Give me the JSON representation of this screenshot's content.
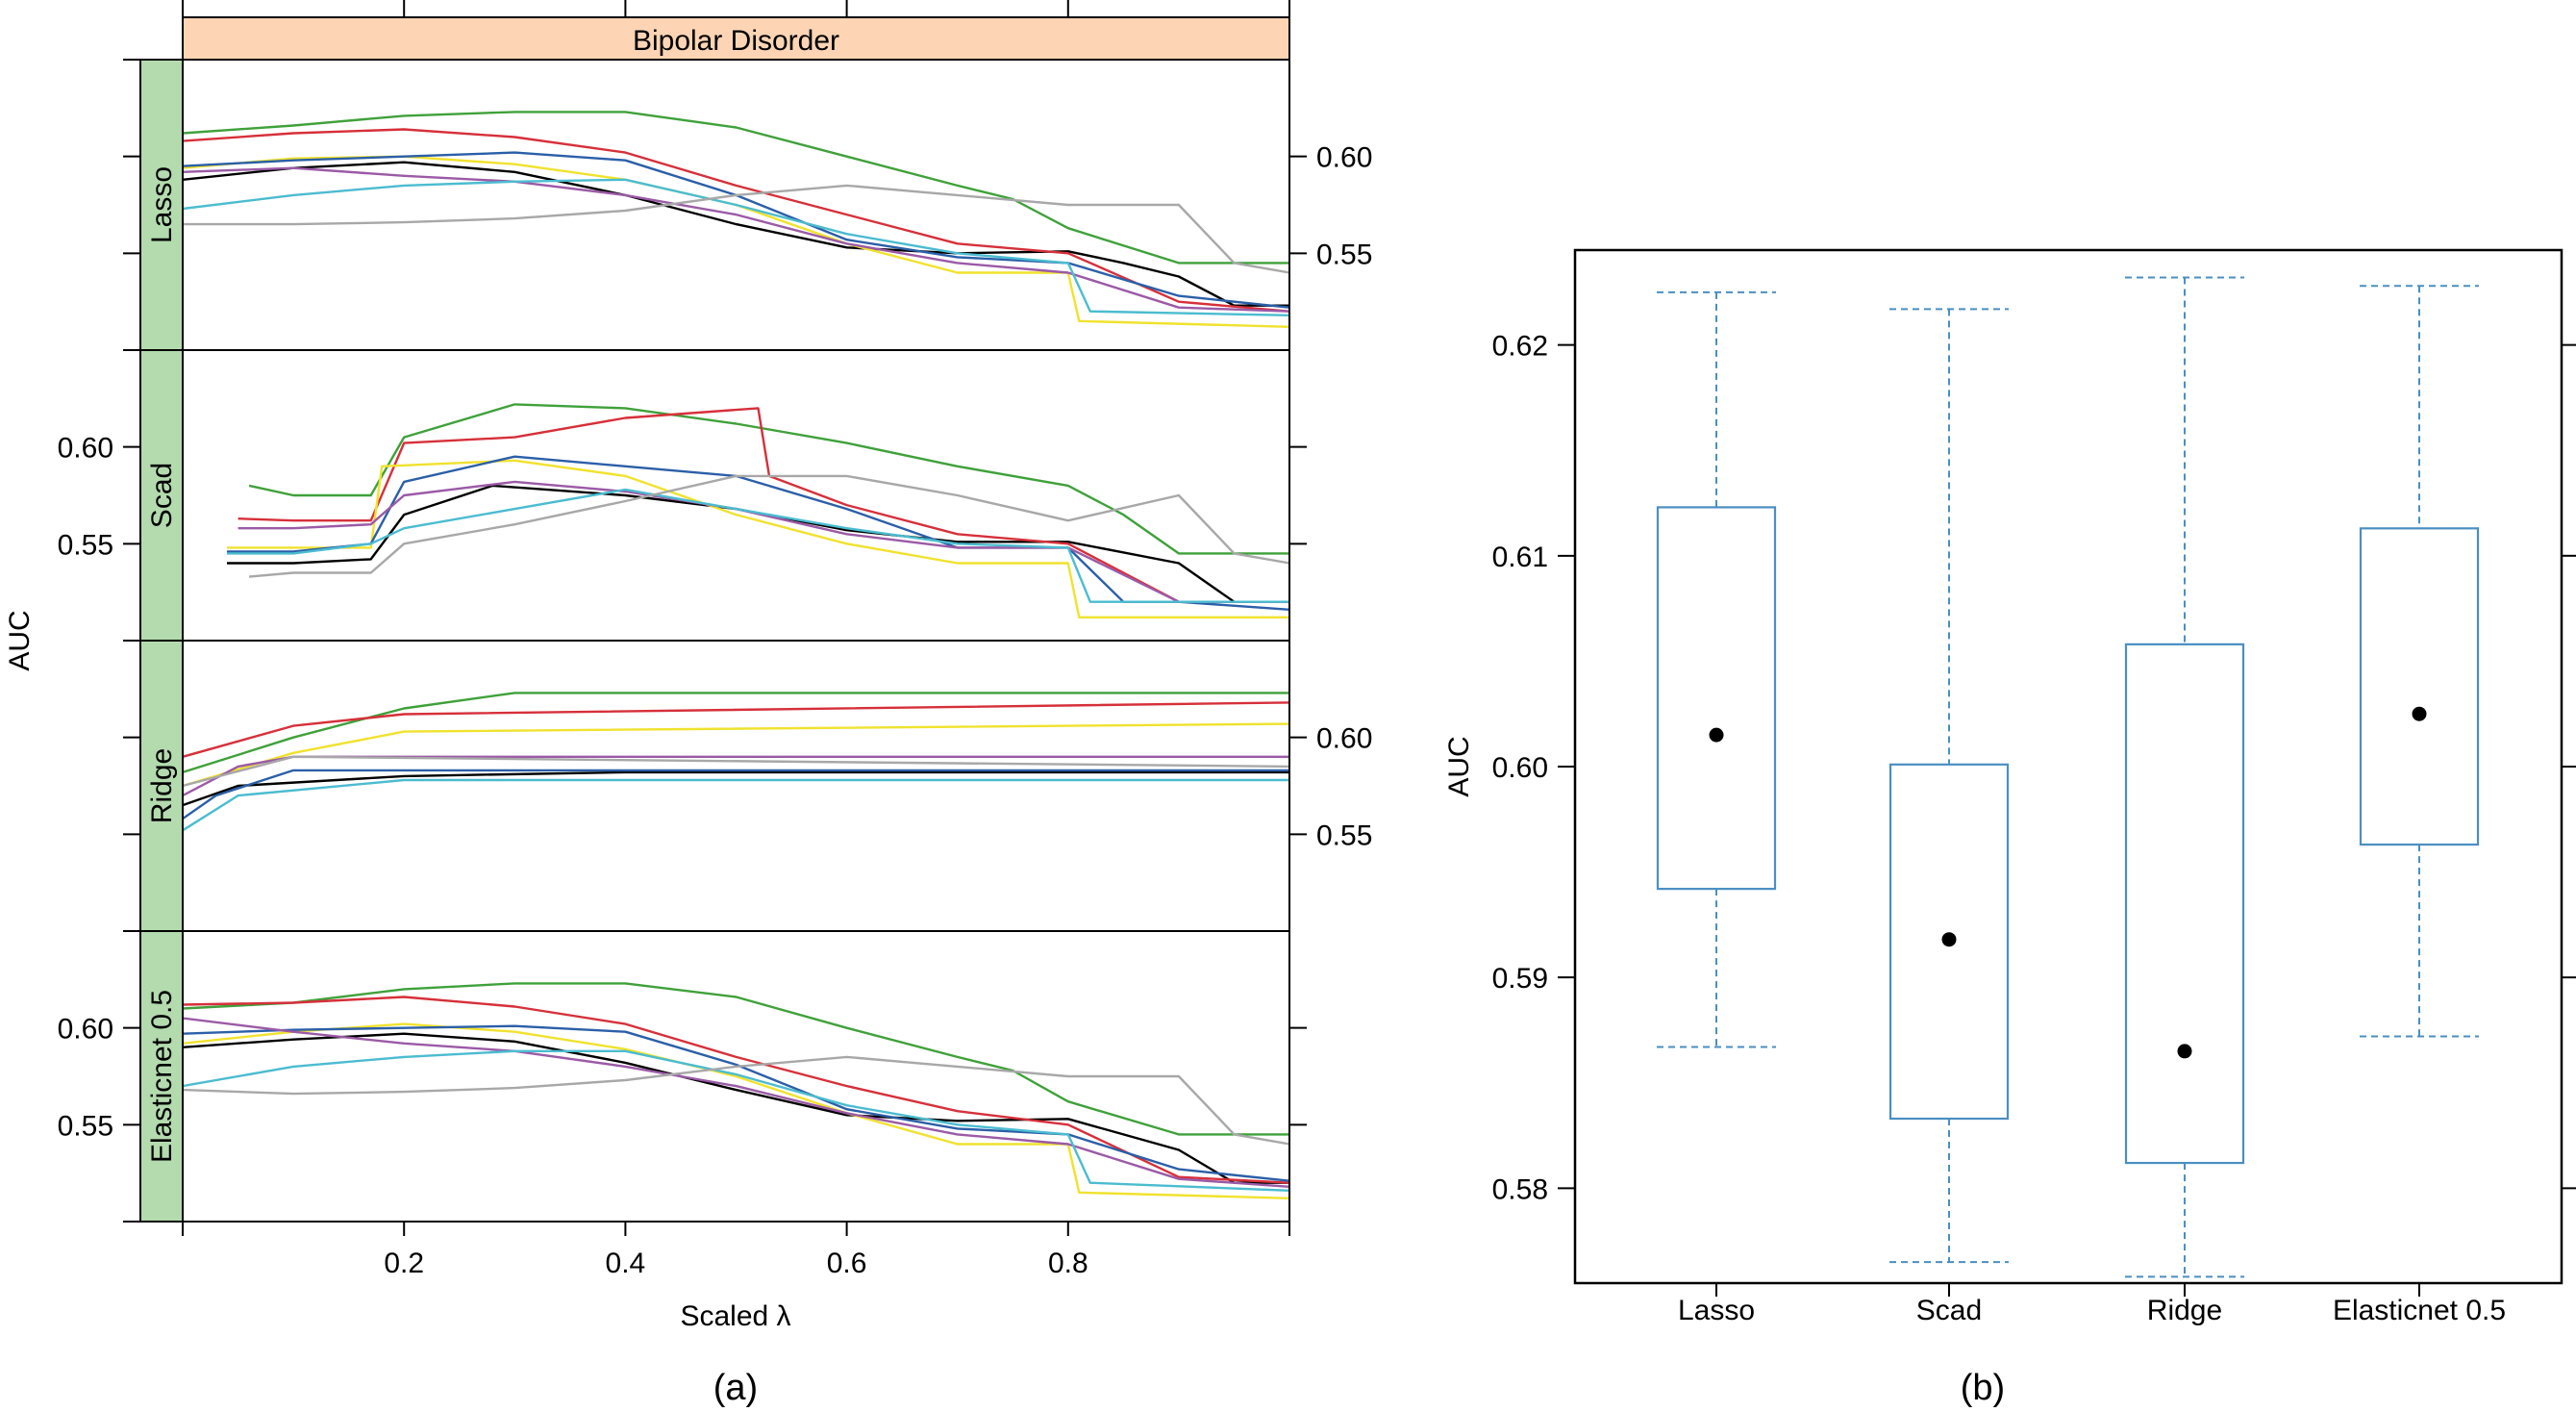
{
  "colors": {
    "strip_top": "#fdd5b4",
    "strip_side": "#b3dbae",
    "box": "#4a8fc2",
    "series": [
      "#000000",
      "#3fa13a",
      "#d6303a",
      "#f0e22e",
      "#2b5fa8",
      "#9b5aa6",
      "#4bbcd0",
      "#a8a8a8"
    ]
  },
  "panel_a": {
    "caption": "(a)",
    "strip_title": "Bipolar Disorder",
    "ylabel": "AUC",
    "xlabel": "Scaled λ",
    "x_ticks": [
      "0.2",
      "0.4",
      "0.6",
      "0.8"
    ],
    "y_ticks": [
      "0.60",
      "0.55"
    ]
  },
  "panel_b": {
    "caption": "(b)",
    "ylabel": "AUC",
    "y_ticks": [
      "0.62",
      "0.61",
      "0.60",
      "0.59",
      "0.58"
    ]
  },
  "chart_data": [
    {
      "type": "line",
      "ylabel": "AUC",
      "xlabel": "Scaled λ",
      "strip_title": "Bipolar Disorder",
      "xlim": [
        0,
        1
      ],
      "ylim": [
        0.5,
        0.65
      ],
      "panels": [
        {
          "name": "Lasso",
          "series": [
            {
              "x": [
                0,
                0.1,
                0.2,
                0.3,
                0.4,
                0.5,
                0.6,
                0.7,
                0.8,
                0.85,
                0.9,
                0.95,
                1
              ],
              "y": [
                0.588,
                0.594,
                0.597,
                0.592,
                0.58,
                0.565,
                0.553,
                0.55,
                0.551,
                0.545,
                0.538,
                0.523,
                0.523
              ]
            },
            {
              "x": [
                0,
                0.1,
                0.2,
                0.3,
                0.4,
                0.5,
                0.6,
                0.7,
                0.75,
                0.8,
                0.9,
                1
              ],
              "y": [
                0.612,
                0.616,
                0.621,
                0.623,
                0.623,
                0.615,
                0.6,
                0.585,
                0.578,
                0.563,
                0.545,
                0.545
              ]
            },
            {
              "x": [
                0,
                0.1,
                0.2,
                0.3,
                0.4,
                0.5,
                0.6,
                0.7,
                0.8,
                0.9,
                1
              ],
              "y": [
                0.608,
                0.612,
                0.614,
                0.61,
                0.602,
                0.585,
                0.57,
                0.555,
                0.55,
                0.525,
                0.52
              ]
            },
            {
              "x": [
                0,
                0.1,
                0.2,
                0.3,
                0.4,
                0.5,
                0.6,
                0.7,
                0.8,
                0.81,
                1
              ],
              "y": [
                0.594,
                0.599,
                0.6,
                0.596,
                0.588,
                0.575,
                0.555,
                0.54,
                0.54,
                0.515,
                0.512
              ]
            },
            {
              "x": [
                0,
                0.1,
                0.2,
                0.3,
                0.4,
                0.5,
                0.6,
                0.7,
                0.8,
                0.9,
                1
              ],
              "y": [
                0.595,
                0.598,
                0.6,
                0.602,
                0.598,
                0.58,
                0.557,
                0.548,
                0.545,
                0.528,
                0.522
              ]
            },
            {
              "x": [
                0,
                0.1,
                0.2,
                0.3,
                0.4,
                0.5,
                0.6,
                0.7,
                0.8,
                0.9,
                1
              ],
              "y": [
                0.592,
                0.594,
                0.59,
                0.587,
                0.58,
                0.57,
                0.555,
                0.545,
                0.54,
                0.522,
                0.52
              ]
            },
            {
              "x": [
                0,
                0.1,
                0.2,
                0.3,
                0.4,
                0.5,
                0.6,
                0.7,
                0.8,
                0.82,
                1
              ],
              "y": [
                0.573,
                0.58,
                0.585,
                0.587,
                0.588,
                0.575,
                0.56,
                0.55,
                0.545,
                0.52,
                0.518
              ]
            },
            {
              "x": [
                0,
                0.1,
                0.2,
                0.3,
                0.4,
                0.5,
                0.6,
                0.7,
                0.8,
                0.9,
                0.95,
                1
              ],
              "y": [
                0.565,
                0.565,
                0.566,
                0.568,
                0.572,
                0.58,
                0.585,
                0.58,
                0.575,
                0.575,
                0.545,
                0.54
              ]
            }
          ]
        },
        {
          "name": "Scad",
          "series": [
            {
              "x": [
                0.04,
                0.1,
                0.17,
                0.2,
                0.28,
                0.4,
                0.5,
                0.6,
                0.7,
                0.8,
                0.9,
                0.95,
                1
              ],
              "y": [
                0.54,
                0.54,
                0.542,
                0.565,
                0.58,
                0.575,
                0.568,
                0.557,
                0.551,
                0.551,
                0.54,
                0.52,
                0.52
              ]
            },
            {
              "x": [
                0.06,
                0.1,
                0.17,
                0.2,
                0.3,
                0.4,
                0.5,
                0.6,
                0.7,
                0.8,
                0.85,
                0.9,
                1
              ],
              "y": [
                0.58,
                0.575,
                0.575,
                0.605,
                0.622,
                0.62,
                0.612,
                0.602,
                0.59,
                0.58,
                0.565,
                0.545,
                0.545
              ]
            },
            {
              "x": [
                0.05,
                0.1,
                0.17,
                0.2,
                0.3,
                0.4,
                0.52,
                0.53,
                0.6,
                0.7,
                0.8,
                0.9,
                1
              ],
              "y": [
                0.563,
                0.562,
                0.562,
                0.602,
                0.605,
                0.615,
                0.62,
                0.585,
                0.57,
                0.555,
                0.55,
                0.52,
                0.52
              ]
            },
            {
              "x": [
                0.04,
                0.1,
                0.17,
                0.18,
                0.3,
                0.4,
                0.5,
                0.6,
                0.7,
                0.8,
                0.81,
                1
              ],
              "y": [
                0.548,
                0.548,
                0.548,
                0.59,
                0.593,
                0.585,
                0.565,
                0.55,
                0.54,
                0.54,
                0.512,
                0.512
              ]
            },
            {
              "x": [
                0.04,
                0.1,
                0.17,
                0.2,
                0.3,
                0.4,
                0.5,
                0.6,
                0.7,
                0.8,
                0.85,
                0.9,
                1
              ],
              "y": [
                0.546,
                0.546,
                0.55,
                0.582,
                0.595,
                0.59,
                0.585,
                0.568,
                0.548,
                0.548,
                0.52,
                0.52,
                0.516
              ]
            },
            {
              "x": [
                0.05,
                0.1,
                0.17,
                0.2,
                0.3,
                0.4,
                0.5,
                0.6,
                0.7,
                0.8,
                0.9,
                1
              ],
              "y": [
                0.558,
                0.558,
                0.56,
                0.575,
                0.582,
                0.577,
                0.568,
                0.555,
                0.548,
                0.548,
                0.52,
                0.52
              ]
            },
            {
              "x": [
                0.04,
                0.1,
                0.17,
                0.2,
                0.3,
                0.4,
                0.5,
                0.6,
                0.7,
                0.8,
                0.82,
                1
              ],
              "y": [
                0.545,
                0.545,
                0.55,
                0.558,
                0.568,
                0.578,
                0.568,
                0.558,
                0.55,
                0.548,
                0.52,
                0.52
              ]
            },
            {
              "x": [
                0.06,
                0.1,
                0.17,
                0.2,
                0.3,
                0.4,
                0.5,
                0.6,
                0.7,
                0.8,
                0.9,
                0.95,
                1
              ],
              "y": [
                0.533,
                0.535,
                0.535,
                0.55,
                0.56,
                0.572,
                0.585,
                0.585,
                0.575,
                0.562,
                0.575,
                0.545,
                0.54
              ]
            }
          ]
        },
        {
          "name": "Ridge",
          "series": [
            {
              "x": [
                0,
                0.05,
                0.2,
                0.4,
                1
              ],
              "y": [
                0.565,
                0.575,
                0.58,
                0.582,
                0.582
              ]
            },
            {
              "x": [
                0,
                0.1,
                0.2,
                0.3,
                1
              ],
              "y": [
                0.582,
                0.6,
                0.615,
                0.623,
                0.623
              ]
            },
            {
              "x": [
                0,
                0.1,
                0.2,
                1
              ],
              "y": [
                0.59,
                0.606,
                0.612,
                0.618
              ]
            },
            {
              "x": [
                0,
                0.1,
                0.2,
                1
              ],
              "y": [
                0.575,
                0.592,
                0.603,
                0.607
              ]
            },
            {
              "x": [
                0,
                0.03,
                0.1,
                1
              ],
              "y": [
                0.558,
                0.57,
                0.583,
                0.583
              ]
            },
            {
              "x": [
                0,
                0.05,
                0.1,
                1
              ],
              "y": [
                0.57,
                0.585,
                0.59,
                0.59
              ]
            },
            {
              "x": [
                0,
                0.05,
                0.2,
                1
              ],
              "y": [
                0.552,
                0.57,
                0.578,
                0.578
              ]
            },
            {
              "x": [
                0,
                0.1,
                1
              ],
              "y": [
                0.575,
                0.59,
                0.585
              ]
            }
          ]
        },
        {
          "name": "Elasticnet 0.5",
          "series": [
            {
              "x": [
                0,
                0.1,
                0.2,
                0.3,
                0.4,
                0.5,
                0.6,
                0.7,
                0.8,
                0.85,
                0.9,
                0.95,
                1
              ],
              "y": [
                0.59,
                0.594,
                0.597,
                0.593,
                0.582,
                0.568,
                0.555,
                0.552,
                0.553,
                0.545,
                0.537,
                0.52,
                0.52
              ]
            },
            {
              "x": [
                0,
                0.1,
                0.2,
                0.3,
                0.4,
                0.5,
                0.6,
                0.7,
                0.75,
                0.8,
                0.9,
                1
              ],
              "y": [
                0.61,
                0.613,
                0.62,
                0.623,
                0.623,
                0.616,
                0.6,
                0.585,
                0.578,
                0.562,
                0.545,
                0.545
              ]
            },
            {
              "x": [
                0,
                0.1,
                0.2,
                0.3,
                0.4,
                0.5,
                0.6,
                0.7,
                0.8,
                0.9,
                1
              ],
              "y": [
                0.612,
                0.613,
                0.616,
                0.611,
                0.602,
                0.585,
                0.57,
                0.557,
                0.55,
                0.523,
                0.52
              ]
            },
            {
              "x": [
                0,
                0.1,
                0.2,
                0.3,
                0.4,
                0.5,
                0.6,
                0.7,
                0.8,
                0.81,
                1
              ],
              "y": [
                0.592,
                0.598,
                0.602,
                0.598,
                0.589,
                0.575,
                0.556,
                0.54,
                0.54,
                0.515,
                0.512
              ]
            },
            {
              "x": [
                0,
                0.1,
                0.2,
                0.3,
                0.4,
                0.5,
                0.6,
                0.7,
                0.8,
                0.9,
                1
              ],
              "y": [
                0.597,
                0.599,
                0.6,
                0.601,
                0.598,
                0.581,
                0.558,
                0.548,
                0.545,
                0.527,
                0.521
              ]
            },
            {
              "x": [
                0,
                0.1,
                0.2,
                0.3,
                0.4,
                0.5,
                0.6,
                0.7,
                0.8,
                0.9,
                1
              ],
              "y": [
                0.605,
                0.598,
                0.592,
                0.588,
                0.58,
                0.57,
                0.556,
                0.545,
                0.54,
                0.522,
                0.518
              ]
            },
            {
              "x": [
                0,
                0.1,
                0.2,
                0.3,
                0.4,
                0.5,
                0.6,
                0.7,
                0.8,
                0.82,
                1
              ],
              "y": [
                0.57,
                0.58,
                0.585,
                0.588,
                0.588,
                0.576,
                0.56,
                0.55,
                0.545,
                0.52,
                0.516
              ]
            },
            {
              "x": [
                0,
                0.1,
                0.2,
                0.3,
                0.4,
                0.5,
                0.6,
                0.7,
                0.8,
                0.9,
                0.95,
                1
              ],
              "y": [
                0.568,
                0.566,
                0.567,
                0.569,
                0.573,
                0.58,
                0.585,
                0.58,
                0.575,
                0.575,
                0.545,
                0.54
              ]
            }
          ]
        }
      ]
    },
    {
      "type": "box",
      "ylabel": "AUC",
      "ylim": [
        0.5755,
        0.6245
      ],
      "categories": [
        "Lasso",
        "Scad",
        "Ridge",
        "Elasticnet 0.5"
      ],
      "boxes": [
        {
          "min": 0.5867,
          "q1": 0.5942,
          "median": 0.6015,
          "q3": 0.6123,
          "max": 0.6225
        },
        {
          "min": 0.5765,
          "q1": 0.5833,
          "median": 0.5918,
          "q3": 0.6001,
          "max": 0.6217
        },
        {
          "min": 0.5758,
          "q1": 0.5812,
          "median": 0.5865,
          "q3": 0.6058,
          "max": 0.6232
        },
        {
          "min": 0.5872,
          "q1": 0.5963,
          "median": 0.6025,
          "q3": 0.6113,
          "max": 0.6228
        }
      ]
    }
  ]
}
